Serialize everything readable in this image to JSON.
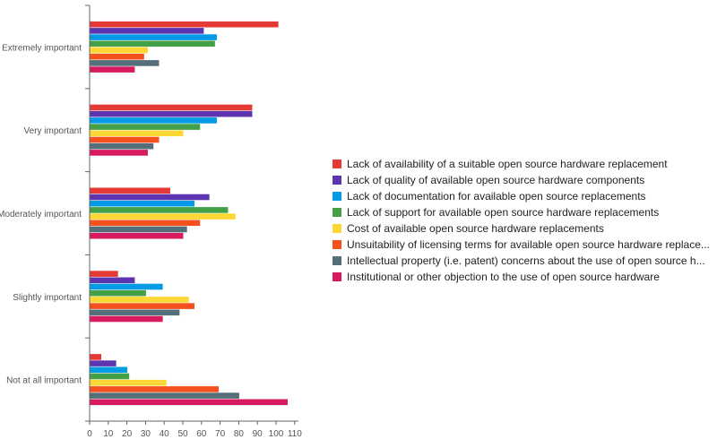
{
  "chart_data": {
    "type": "bar",
    "orientation": "horizontal",
    "categories": [
      "Extremely important",
      "Very important",
      "Moderately important",
      "Slightly important",
      "Not at all important"
    ],
    "series": [
      {
        "name": "Lack of availability of a suitable open source hardware replacement",
        "color": "#e53935",
        "values": [
          101,
          87,
          43,
          15,
          6
        ]
      },
      {
        "name": "Lack of quality of available open source hardware components",
        "color": "#5e35b1",
        "values": [
          61,
          87,
          64,
          24,
          14
        ]
      },
      {
        "name": "Lack of documentation for available open source replacements",
        "color": "#039be5",
        "values": [
          68,
          68,
          56,
          39,
          20
        ]
      },
      {
        "name": "Lack of support for available open source hardware replacements",
        "color": "#43a047",
        "values": [
          67,
          59,
          74,
          30,
          21
        ]
      },
      {
        "name": "Cost of available open source hardware replacements",
        "color": "#fdd835",
        "values": [
          31,
          50,
          78,
          53,
          41
        ]
      },
      {
        "name": "Unsuitability of licensing terms for available open source hardware replace...",
        "color": "#f4511e",
        "values": [
          29,
          37,
          59,
          56,
          69
        ]
      },
      {
        "name": "Intellectual property (i.e. patent) concerns about the use of open source h...",
        "color": "#546e7a",
        "values": [
          37,
          34,
          52,
          48,
          80
        ]
      },
      {
        "name": "Institutional or other objection to the use of open source hardware",
        "color": "#d81b60",
        "values": [
          24,
          31,
          50,
          39,
          106
        ]
      }
    ],
    "xlim": [
      0,
      110
    ],
    "xticks": [
      0,
      10,
      20,
      30,
      40,
      50,
      60,
      70,
      80,
      90,
      100,
      110
    ],
    "title": "",
    "xlabel": "",
    "ylabel": "",
    "grid": false,
    "legend_position": "right"
  }
}
